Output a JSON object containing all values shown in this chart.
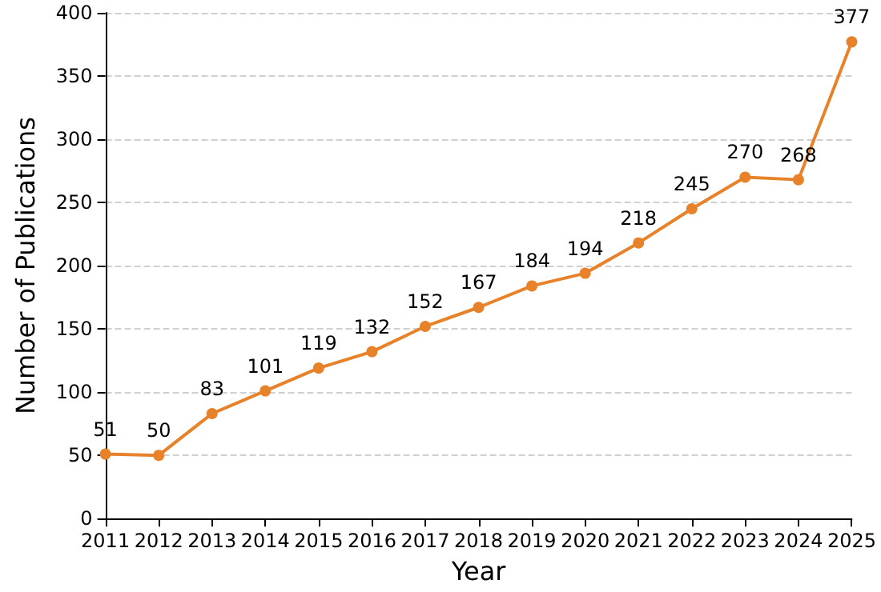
{
  "chart_data": {
    "type": "line",
    "xlabel": "Year",
    "ylabel": "Number of Publications",
    "x": [
      2011,
      2012,
      2013,
      2014,
      2015,
      2016,
      2017,
      2018,
      2019,
      2020,
      2021,
      2022,
      2023,
      2024,
      2025
    ],
    "series": [
      {
        "color": "#e8822a",
        "values": [
          51,
          50,
          83,
          101,
          119,
          132,
          152,
          167,
          184,
          194,
          218,
          245,
          270,
          268,
          377
        ]
      }
    ],
    "xlim": [
      2011,
      2025
    ],
    "xticks": [
      2011,
      2012,
      2013,
      2014,
      2015,
      2016,
      2017,
      2018,
      2019,
      2020,
      2021,
      2022,
      2023,
      2024,
      2025
    ],
    "ylim": [
      0,
      400
    ],
    "yticks": [
      0,
      50,
      100,
      150,
      200,
      250,
      300,
      350,
      400
    ],
    "grid": "y",
    "marker": "circle",
    "line_style": "solid",
    "data_labels": true
  }
}
